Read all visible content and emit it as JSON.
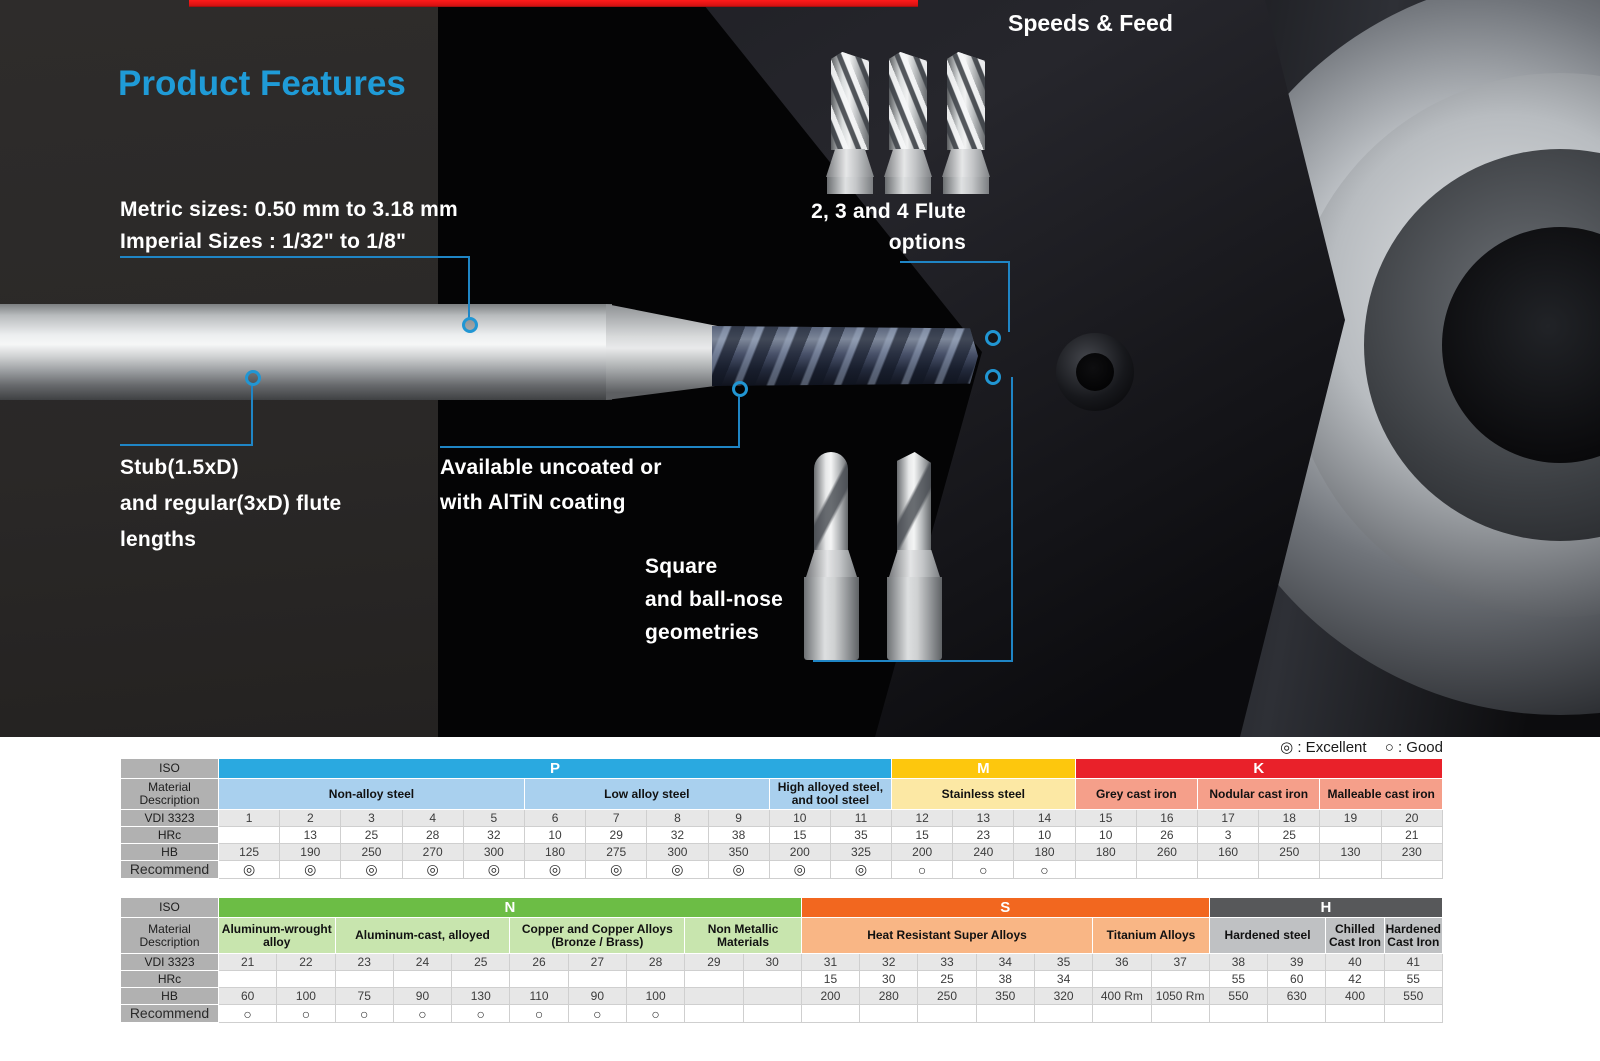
{
  "page": {
    "heading": "Product Features",
    "speeds_feed": "Speeds & Feed"
  },
  "features": {
    "sizes": {
      "lines": [
        "Metric sizes: 0.50 mm to 3.18 mm",
        "Imperial Sizes : 1/32\" to 1/8\""
      ]
    },
    "flute_options": {
      "lines": [
        "2, 3 and 4 Flute",
        "options"
      ]
    },
    "stub": {
      "lines": [
        "Stub(1.5xD)",
        "and regular(3xD) flute",
        "lengths"
      ]
    },
    "coating": {
      "lines": [
        "Available uncoated or",
        "with AlTiN coating"
      ]
    },
    "geometries": {
      "lines": [
        "Square",
        "and ball-nose",
        "geometries"
      ]
    }
  },
  "legend": {
    "excellent": "◎ : Excellent",
    "good": "○ : Good"
  },
  "colors": {
    "accent_blue": "#1f9bd7",
    "callout_blue": "#1f85c5",
    "red_bar": "#e01414",
    "iso_p": "#2aa9e0",
    "iso_m": "#fdc70d",
    "iso_k": "#e9212a",
    "iso_n": "#6cbd45",
    "iso_s": "#f2671f",
    "iso_h": "#57585a"
  },
  "tables": [
    {
      "row_labels": [
        "ISO",
        "Material Description",
        "VDI 3323",
        "HRc",
        "HB",
        "Recommend"
      ],
      "iso_groups": [
        {
          "label": "P",
          "span": 11,
          "color": "#2aa9e0"
        },
        {
          "label": "M",
          "span": 3,
          "color": "#fdc70d"
        },
        {
          "label": "K",
          "span": 6,
          "color": "#e9212a"
        }
      ],
      "material_groups": [
        {
          "label": "Non-alloy steel",
          "span": 5,
          "color": "#a9d0ee"
        },
        {
          "label": "Low alloy steel",
          "span": 4,
          "color": "#a9d0ee"
        },
        {
          "label": "High alloyed steel, and tool steel",
          "span": 2,
          "color": "#a9d0ee"
        },
        {
          "label": "Stainless steel",
          "span": 3,
          "color": "#fce8a4"
        },
        {
          "label": "Grey cast iron",
          "span": 2,
          "color": "#f59f8a"
        },
        {
          "label": "Nodular cast iron",
          "span": 2,
          "color": "#f59f8a"
        },
        {
          "label": "Malleable cast iron",
          "span": 2,
          "color": "#f59f8a"
        }
      ],
      "vdi": [
        "1",
        "2",
        "3",
        "4",
        "5",
        "6",
        "7",
        "8",
        "9",
        "10",
        "11",
        "12",
        "13",
        "14",
        "15",
        "16",
        "17",
        "18",
        "19",
        "20"
      ],
      "hrc": [
        "",
        "13",
        "25",
        "28",
        "32",
        "10",
        "29",
        "32",
        "38",
        "15",
        "35",
        "15",
        "23",
        "10",
        "10",
        "26",
        "3",
        "25",
        "",
        "21"
      ],
      "hb": [
        "125",
        "190",
        "250",
        "270",
        "300",
        "180",
        "275",
        "300",
        "350",
        "200",
        "325",
        "200",
        "240",
        "180",
        "180",
        "260",
        "160",
        "250",
        "130",
        "230"
      ],
      "recommend": [
        "◎",
        "◎",
        "◎",
        "◎",
        "◎",
        "◎",
        "◎",
        "◎",
        "◎",
        "◎",
        "◎",
        "○",
        "○",
        "○",
        "",
        "",
        "",
        "",
        "",
        ""
      ]
    },
    {
      "row_labels": [
        "ISO",
        "Material Description",
        "VDI 3323",
        "HRc",
        "HB",
        "Recommend"
      ],
      "iso_groups": [
        {
          "label": "N",
          "span": 10,
          "color": "#6cbd45"
        },
        {
          "label": "S",
          "span": 7,
          "color": "#f2671f"
        },
        {
          "label": "H",
          "span": 4,
          "color": "#57585a"
        }
      ],
      "material_groups": [
        {
          "label": "Aluminum-wrought alloy",
          "span": 2,
          "color": "#c8e5ae"
        },
        {
          "label": "Aluminum-cast, alloyed",
          "span": 3,
          "color": "#c8e5ae"
        },
        {
          "label": "Copper and Copper Alloys (Bronze / Brass)",
          "span": 3,
          "color": "#c8e5ae"
        },
        {
          "label": "Non Metallic Materials",
          "span": 2,
          "color": "#c8e5ae"
        },
        {
          "label": "Heat Resistant Super Alloys",
          "span": 5,
          "color": "#f9b685"
        },
        {
          "label": "Titanium Alloys",
          "span": 2,
          "color": "#f9b685"
        },
        {
          "label": "Hardened steel",
          "span": 2,
          "color": "#bfc1c3"
        },
        {
          "label": "Chilled Cast Iron",
          "span": 1,
          "color": "#bfc1c3"
        },
        {
          "label": "Hardened Cast Iron",
          "span": 1,
          "color": "#bfc1c3"
        }
      ],
      "vdi": [
        "21",
        "22",
        "23",
        "24",
        "25",
        "26",
        "27",
        "28",
        "29",
        "30",
        "31",
        "32",
        "33",
        "34",
        "35",
        "36",
        "37",
        "38",
        "39",
        "40",
        "41"
      ],
      "hrc": [
        "",
        "",
        "",
        "",
        "",
        "",
        "",
        "",
        "",
        "",
        "15",
        "30",
        "25",
        "38",
        "34",
        "",
        "",
        "55",
        "60",
        "42",
        "55"
      ],
      "hb": [
        "60",
        "100",
        "75",
        "90",
        "130",
        "110",
        "90",
        "100",
        "",
        "",
        "200",
        "280",
        "250",
        "350",
        "320",
        "400 Rm",
        "1050 Rm",
        "550",
        "630",
        "400",
        "550"
      ],
      "recommend": [
        "○",
        "○",
        "○",
        "○",
        "○",
        "○",
        "○",
        "○",
        "",
        "",
        "",
        "",
        "",
        "",
        "",
        "",
        "",
        "",
        "",
        "",
        ""
      ]
    }
  ]
}
